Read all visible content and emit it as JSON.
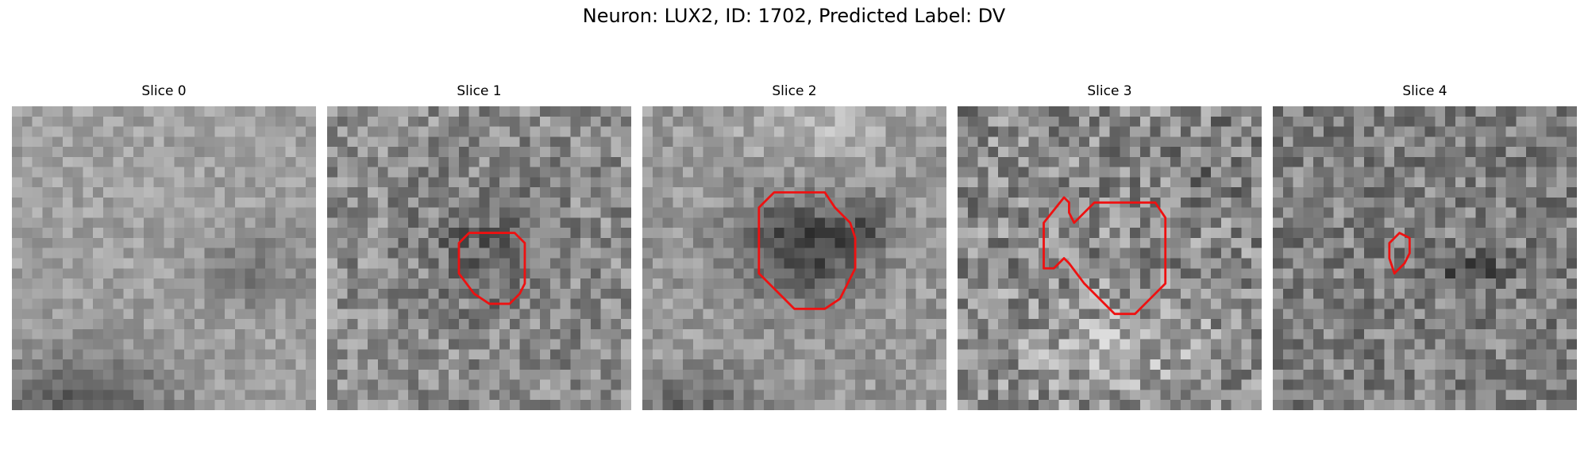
{
  "figure": {
    "title": "Neuron: LUX2, ID: 1702, Predicted Label: DV",
    "grid": 30,
    "contour_color": "#ee1111"
  },
  "slices": [
    {
      "title": "Slice 0",
      "contour": []
    },
    {
      "title": "Slice 1",
      "contour": [
        [
          14,
          12.5
        ],
        [
          13,
          13.5
        ],
        [
          13,
          16.5
        ],
        [
          14.5,
          18.5
        ],
        [
          16,
          19.5
        ],
        [
          18,
          19.5
        ],
        [
          19,
          18.5
        ],
        [
          19.5,
          17.5
        ],
        [
          19.5,
          13.5
        ],
        [
          18.5,
          12.5
        ],
        [
          18.5,
          12.5
        ],
        [
          17,
          12.5
        ],
        [
          15,
          12.5
        ]
      ]
    },
    {
      "title": "Slice 2",
      "contour": [
        [
          13,
          8.5
        ],
        [
          11.5,
          10
        ],
        [
          11.5,
          16.5
        ],
        [
          13,
          18
        ],
        [
          15,
          20
        ],
        [
          18,
          20
        ],
        [
          19.5,
          19
        ],
        [
          21,
          16
        ],
        [
          21,
          13
        ],
        [
          20.5,
          11.5
        ],
        [
          19,
          10
        ],
        [
          18,
          8.5
        ]
      ]
    },
    {
      "title": "Slice 3",
      "contour": [
        [
          10.5,
          9
        ],
        [
          8.5,
          11.5
        ],
        [
          8.5,
          16
        ],
        [
          9.5,
          16
        ],
        [
          10.5,
          15
        ],
        [
          11,
          15.5
        ],
        [
          12.5,
          17.5
        ],
        [
          14.5,
          19.5
        ],
        [
          15.5,
          20.5
        ],
        [
          17.5,
          20.5
        ],
        [
          19,
          19
        ],
        [
          20.5,
          17.5
        ],
        [
          20.5,
          11
        ],
        [
          19.5,
          9.5
        ],
        [
          16.5,
          9.5
        ],
        [
          13.5,
          9.5
        ],
        [
          12,
          11
        ],
        [
          11.5,
          11.5
        ],
        [
          11,
          10.5
        ],
        [
          11,
          9.5
        ]
      ]
    },
    {
      "title": "Slice 4",
      "contour": [
        [
          12.5,
          12.5
        ],
        [
          11.5,
          13.5
        ],
        [
          11.5,
          15
        ],
        [
          12,
          16.5
        ],
        [
          13,
          15.5
        ],
        [
          13.5,
          14.5
        ],
        [
          13.5,
          13
        ]
      ]
    }
  ]
}
